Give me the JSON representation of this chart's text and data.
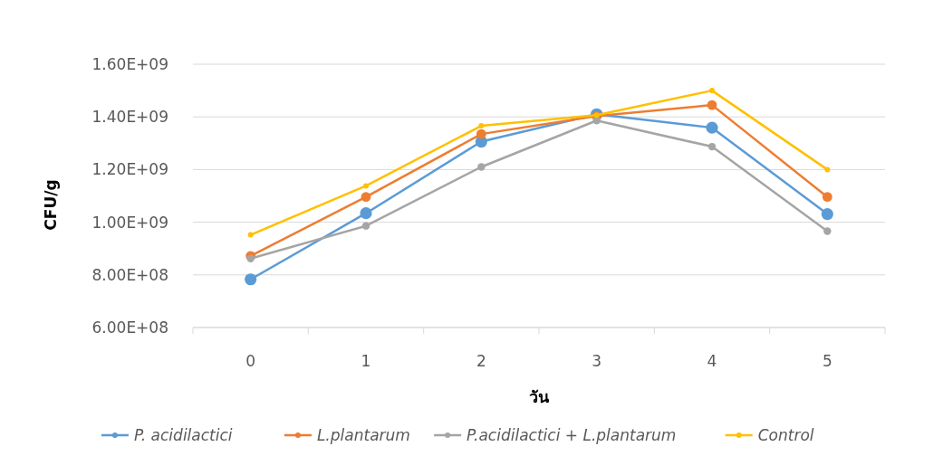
{
  "chart_data": {
    "type": "line",
    "xlabel": "วัน",
    "ylabel": "CFU/g",
    "categories": [
      "0",
      "1",
      "2",
      "3",
      "4",
      "5"
    ],
    "series": [
      {
        "name": "P. acidilactici",
        "color": "#5b9bd5",
        "values": [
          783000000,
          1034000000,
          1306000000,
          1410000000,
          1359000000,
          1031000000
        ]
      },
      {
        "name": "L.plantarum",
        "color": "#ed7d31",
        "values": [
          872000000,
          1096000000,
          1335000000,
          1403000000,
          1445000000,
          1096000000
        ]
      },
      {
        "name": "P.acidilactici + L.plantarum",
        "color": "#a5a5a5",
        "values": [
          862000000,
          986000000,
          1210000000,
          1386000000,
          1287000000,
          966000000
        ]
      },
      {
        "name": "Control",
        "color": "#ffc000",
        "values": [
          952000000,
          1138000000,
          1366000000,
          1407000000,
          1500000000,
          1200000000
        ]
      }
    ],
    "ylim": [
      600000000,
      1600000000
    ],
    "yticks": [
      {
        "value": 600000000,
        "label": "6.00E+08"
      },
      {
        "value": 800000000,
        "label": "8.00E+08"
      },
      {
        "value": 1000000000,
        "label": "1.00E+09"
      },
      {
        "value": 1200000000,
        "label": "1.20E+09"
      },
      {
        "value": 1400000000,
        "label": "1.40E+09"
      },
      {
        "value": 1600000000,
        "label": "1.60E+09"
      }
    ],
    "grid": "y",
    "legend": "bottom",
    "marker": "circle",
    "line_style": "solid"
  }
}
